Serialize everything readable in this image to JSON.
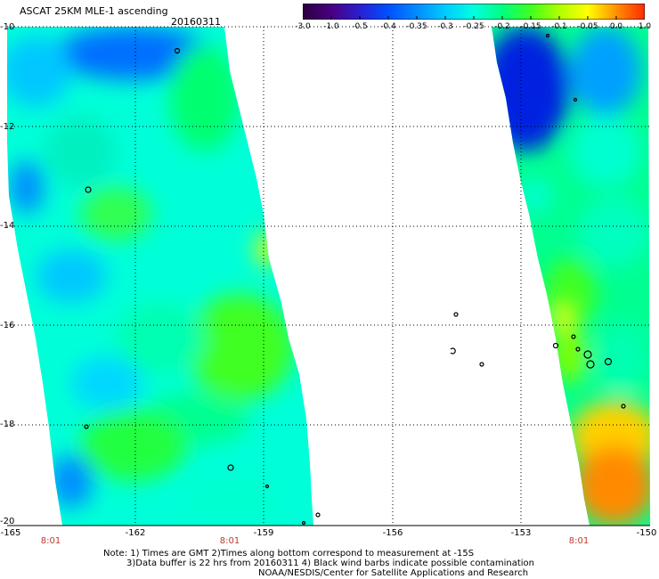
{
  "header": {
    "title": "ASCAT 25KM MLE-1 ascending",
    "date": "20160311"
  },
  "colorbar": {
    "tick_labels": [
      "-3.0",
      "-1.0",
      "-0.5",
      "-0.4",
      "-0.35",
      "-0.3",
      "-0.25",
      "-0.2",
      "-0.15",
      "-0.1",
      "-0.05",
      "0.0",
      "1.0"
    ],
    "colors": [
      "#2a0040",
      "#4b0080",
      "#2a1fd0",
      "#0050ff",
      "#008cff",
      "#00ccff",
      "#00ffe0",
      "#00ff80",
      "#40ff20",
      "#b0ff00",
      "#ffff00",
      "#ff9000",
      "#ff2a00"
    ]
  },
  "axes": {
    "lat_labels": [
      "-10",
      "-12",
      "-14",
      "-16",
      "-18",
      "-20"
    ],
    "lon_labels": [
      "-165",
      "-162",
      "-159",
      "-156",
      "-153",
      "-150"
    ],
    "times": [
      "8:01",
      "8:01",
      "8:01"
    ]
  },
  "notes": [
    "Note: 1) Times are GMT 2)Times along bottom correspond to measurement at -15S",
    "3)Data buffer is 22 hrs from 20160311 4) Black wind barbs indicate possible contamination",
    "NOAA/NESDIS/Center for Satellite Applications and Research"
  ]
}
